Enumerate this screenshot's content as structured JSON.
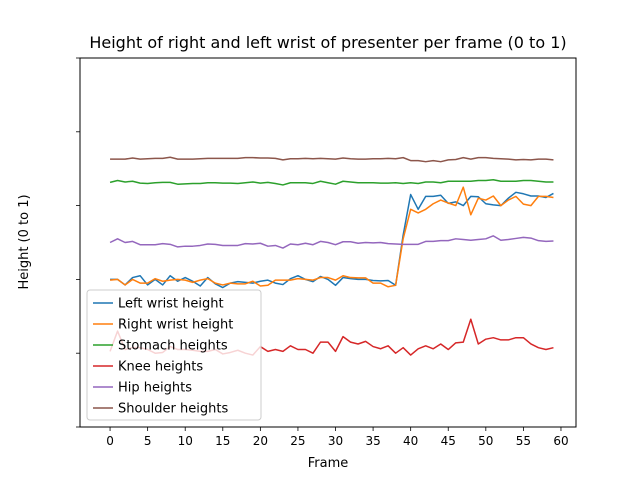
{
  "chart_data": {
    "type": "line",
    "title": "Height of right and left wrist of presenter per frame (0 to 1)",
    "xlabel": "Frame",
    "ylabel": "Height (0 to 1)",
    "xlim": [
      -4,
      62
    ],
    "ylim": [
      0,
      1
    ],
    "x_ticks": [
      0,
      5,
      10,
      15,
      20,
      25,
      30,
      35,
      40,
      45,
      50,
      55,
      60
    ],
    "y_ticks": [
      0,
      0.2,
      0.4,
      0.6,
      0.8,
      1.0
    ],
    "y_tick_labels_visible": false,
    "grid": false,
    "legend_position": "lower-left",
    "x": [
      0,
      1,
      2,
      3,
      4,
      5,
      6,
      7,
      8,
      9,
      10,
      11,
      12,
      13,
      14,
      15,
      16,
      17,
      18,
      19,
      20,
      21,
      22,
      23,
      24,
      25,
      26,
      27,
      28,
      29,
      30,
      31,
      32,
      33,
      34,
      35,
      36,
      37,
      38,
      39,
      40,
      41,
      42,
      43,
      44,
      45,
      46,
      47,
      48,
      49,
      50,
      51,
      52,
      53,
      54,
      55,
      56,
      57,
      58,
      59
    ],
    "series": [
      {
        "name": "Left wrist height",
        "color": "#1f77b4",
        "values": [
          0.4,
          0.4,
          0.385,
          0.405,
          0.41,
          0.385,
          0.4,
          0.385,
          0.41,
          0.395,
          0.405,
          0.395,
          0.382,
          0.405,
          0.388,
          0.378,
          0.39,
          0.394,
          0.392,
          0.39,
          0.395,
          0.398,
          0.39,
          0.386,
          0.402,
          0.41,
          0.4,
          0.394,
          0.408,
          0.4,
          0.384,
          0.405,
          0.402,
          0.4,
          0.4,
          0.397,
          0.396,
          0.397,
          0.384,
          0.52,
          0.63,
          0.59,
          0.625,
          0.625,
          0.628,
          0.606,
          0.61,
          0.6,
          0.625,
          0.624,
          0.605,
          0.602,
          0.6,
          0.62,
          0.636,
          0.632,
          0.626,
          0.626,
          0.622,
          0.633
        ]
      },
      {
        "name": "Right wrist height",
        "color": "#ff7f0e",
        "values": [
          0.398,
          0.4,
          0.385,
          0.4,
          0.39,
          0.39,
          0.402,
          0.395,
          0.398,
          0.4,
          0.398,
          0.392,
          0.398,
          0.402,
          0.39,
          0.385,
          0.39,
          0.388,
          0.388,
          0.395,
          0.382,
          0.384,
          0.398,
          0.398,
          0.398,
          0.402,
          0.4,
          0.398,
          0.405,
          0.405,
          0.398,
          0.41,
          0.405,
          0.404,
          0.404,
          0.39,
          0.39,
          0.38,
          0.384,
          0.51,
          0.59,
          0.58,
          0.59,
          0.605,
          0.615,
          0.607,
          0.6,
          0.65,
          0.575,
          0.62,
          0.615,
          0.626,
          0.6,
          0.615,
          0.625,
          0.604,
          0.6,
          0.625,
          0.625,
          0.622
        ]
      },
      {
        "name": "Stomach heights",
        "color": "#2ca02c",
        "values": [
          0.663,
          0.668,
          0.664,
          0.666,
          0.661,
          0.66,
          0.662,
          0.663,
          0.663,
          0.658,
          0.659,
          0.66,
          0.66,
          0.662,
          0.662,
          0.661,
          0.661,
          0.66,
          0.662,
          0.664,
          0.661,
          0.663,
          0.66,
          0.656,
          0.662,
          0.662,
          0.662,
          0.66,
          0.666,
          0.662,
          0.658,
          0.666,
          0.664,
          0.662,
          0.662,
          0.662,
          0.661,
          0.661,
          0.662,
          0.66,
          0.662,
          0.66,
          0.664,
          0.664,
          0.662,
          0.666,
          0.666,
          0.666,
          0.666,
          0.668,
          0.668,
          0.67,
          0.666,
          0.666,
          0.666,
          0.668,
          0.668,
          0.666,
          0.664,
          0.664
        ]
      },
      {
        "name": "Knee heights",
        "color": "#d62728",
        "values": [
          0.205,
          0.26,
          0.21,
          0.215,
          0.215,
          0.21,
          0.2,
          0.202,
          0.218,
          0.21,
          0.21,
          0.208,
          0.205,
          0.205,
          0.21,
          0.198,
          0.202,
          0.208,
          0.2,
          0.195,
          0.218,
          0.205,
          0.21,
          0.205,
          0.22,
          0.21,
          0.21,
          0.2,
          0.23,
          0.23,
          0.205,
          0.245,
          0.23,
          0.225,
          0.232,
          0.218,
          0.212,
          0.22,
          0.2,
          0.215,
          0.195,
          0.212,
          0.22,
          0.212,
          0.225,
          0.21,
          0.228,
          0.23,
          0.292,
          0.225,
          0.238,
          0.242,
          0.236,
          0.236,
          0.242,
          0.242,
          0.225,
          0.215,
          0.21,
          0.215
        ]
      },
      {
        "name": "Hip heights",
        "color": "#9467bd",
        "values": [
          0.5,
          0.51,
          0.5,
          0.503,
          0.494,
          0.494,
          0.494,
          0.497,
          0.495,
          0.488,
          0.49,
          0.49,
          0.492,
          0.496,
          0.495,
          0.492,
          0.492,
          0.492,
          0.497,
          0.496,
          0.498,
          0.49,
          0.492,
          0.485,
          0.496,
          0.494,
          0.498,
          0.494,
          0.503,
          0.5,
          0.494,
          0.502,
          0.502,
          0.498,
          0.5,
          0.499,
          0.5,
          0.497,
          0.496,
          0.495,
          0.495,
          0.495,
          0.503,
          0.503,
          0.505,
          0.505,
          0.51,
          0.508,
          0.506,
          0.508,
          0.51,
          0.518,
          0.506,
          0.508,
          0.511,
          0.514,
          0.512,
          0.505,
          0.503,
          0.504
        ]
      },
      {
        "name": "Shoulder heights",
        "color": "#8c564b",
        "values": [
          0.726,
          0.726,
          0.726,
          0.729,
          0.726,
          0.727,
          0.728,
          0.728,
          0.731,
          0.726,
          0.726,
          0.726,
          0.727,
          0.728,
          0.728,
          0.728,
          0.728,
          0.728,
          0.73,
          0.73,
          0.729,
          0.729,
          0.728,
          0.724,
          0.727,
          0.727,
          0.728,
          0.727,
          0.728,
          0.727,
          0.726,
          0.729,
          0.727,
          0.726,
          0.726,
          0.727,
          0.727,
          0.728,
          0.727,
          0.73,
          0.722,
          0.722,
          0.719,
          0.722,
          0.719,
          0.724,
          0.725,
          0.73,
          0.726,
          0.73,
          0.73,
          0.728,
          0.727,
          0.726,
          0.724,
          0.725,
          0.724,
          0.726,
          0.726,
          0.724
        ]
      }
    ]
  }
}
